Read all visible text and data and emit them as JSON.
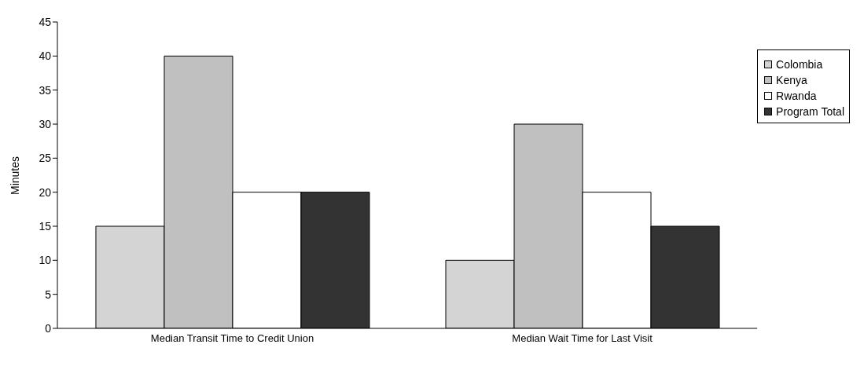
{
  "chart_data": {
    "type": "bar",
    "ylabel": "Minutes",
    "categories": [
      "Median Transit Time to Credit Union",
      "Median Wait Time  for Last Visit"
    ],
    "series": [
      {
        "name": "Colombia",
        "color": "#d4d4d4",
        "values": [
          15,
          10
        ]
      },
      {
        "name": "Kenya",
        "color": "#c0c0c0",
        "values": [
          40,
          30
        ]
      },
      {
        "name": "Rwanda",
        "color": "#ffffff",
        "values": [
          20,
          20
        ]
      },
      {
        "name": "Program Total",
        "color": "#333333",
        "values": [
          20,
          15
        ]
      }
    ],
    "ylim": [
      0,
      45
    ],
    "yticks": [
      0,
      5,
      10,
      15,
      20,
      25,
      30,
      35,
      40,
      45
    ],
    "grid": false,
    "legend": "right"
  }
}
